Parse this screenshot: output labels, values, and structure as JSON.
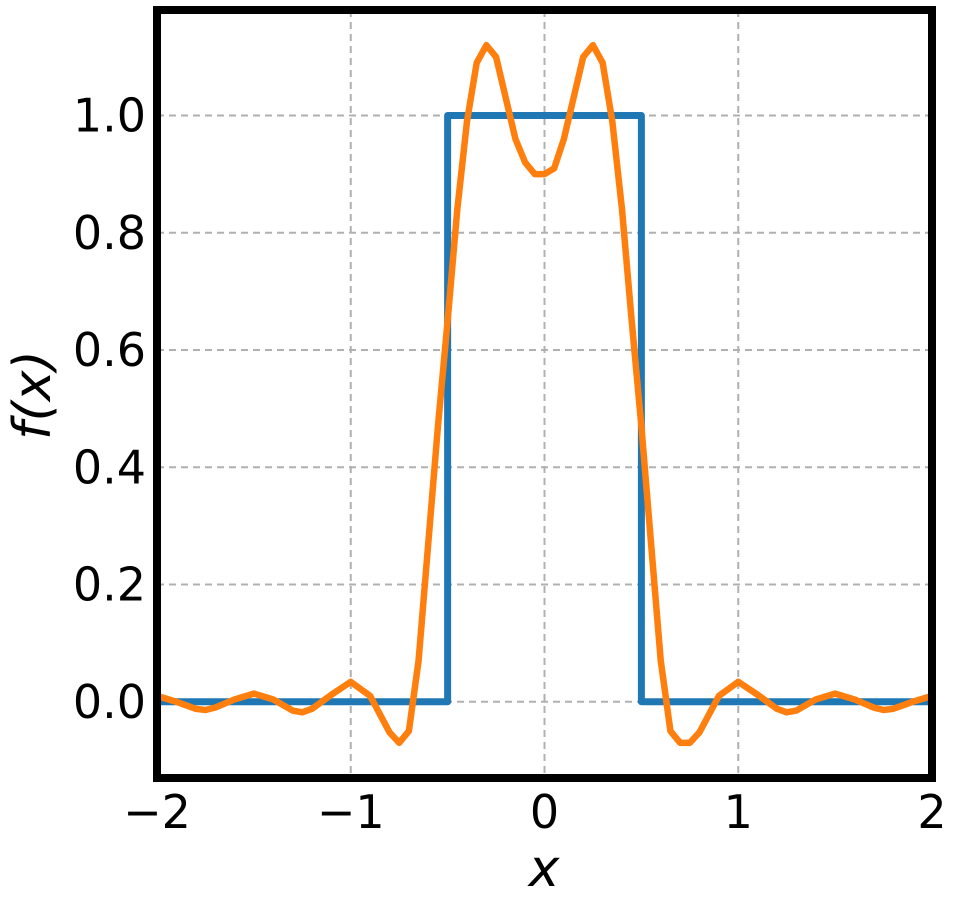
{
  "chart_data": {
    "type": "line",
    "title": "",
    "xlabel": "x",
    "ylabel": "f(x)",
    "xlim": [
      -2,
      2
    ],
    "ylim": [
      -0.13,
      1.18
    ],
    "x_ticks": [
      -2,
      -1,
      0,
      1,
      2
    ],
    "x_tick_labels": [
      "−2",
      "−1",
      "0",
      "1",
      "2"
    ],
    "y_ticks": [
      0.0,
      0.2,
      0.4,
      0.6,
      0.8,
      1.0
    ],
    "y_tick_labels": [
      "0.0",
      "0.2",
      "0.4",
      "0.6",
      "0.8",
      "1.0"
    ],
    "grid": true,
    "legend": "none",
    "series": [
      {
        "color": "#1f77b4",
        "x": [
          -2,
          -0.5,
          -0.5,
          0.5,
          0.5,
          2
        ],
        "y": [
          0,
          0,
          1,
          1,
          0,
          0
        ]
      },
      {
        "color": "#ff7f0e",
        "x": [
          -2.0,
          -1.9,
          -1.8,
          -1.75,
          -1.7,
          -1.6,
          -1.5,
          -1.4,
          -1.3,
          -1.25,
          -1.2,
          -1.1,
          -1.0,
          -0.9,
          -0.8,
          -0.75,
          -0.7,
          -0.65,
          -0.6,
          -0.55,
          -0.5,
          -0.45,
          -0.4,
          -0.35,
          -0.3,
          -0.25,
          -0.2,
          -0.15,
          -0.1,
          -0.05,
          0.0,
          0.05,
          0.1,
          0.15,
          0.2,
          0.25,
          0.3,
          0.35,
          0.4,
          0.45,
          0.5,
          0.55,
          0.6,
          0.65,
          0.7,
          0.75,
          0.8,
          0.9,
          1.0,
          1.1,
          1.2,
          1.25,
          1.3,
          1.4,
          1.5,
          1.6,
          1.7,
          1.75,
          1.8,
          1.9,
          2.0
        ],
        "y": [
          0.01,
          0.0,
          -0.012,
          -0.014,
          -0.01,
          0.004,
          0.014,
          0.004,
          -0.015,
          -0.018,
          -0.012,
          0.012,
          0.034,
          0.01,
          -0.052,
          -0.07,
          -0.05,
          0.07,
          0.27,
          0.47,
          0.65,
          0.84,
          0.99,
          1.09,
          1.12,
          1.1,
          1.03,
          0.96,
          0.92,
          0.9,
          0.9,
          0.91,
          0.96,
          1.03,
          1.1,
          1.12,
          1.09,
          0.99,
          0.84,
          0.65,
          0.47,
          0.27,
          0.07,
          -0.05,
          -0.07,
          -0.07,
          -0.052,
          0.01,
          0.034,
          0.012,
          -0.012,
          -0.018,
          -0.015,
          0.004,
          0.014,
          0.004,
          -0.01,
          -0.014,
          -0.012,
          0.0,
          0.01
        ]
      }
    ]
  }
}
